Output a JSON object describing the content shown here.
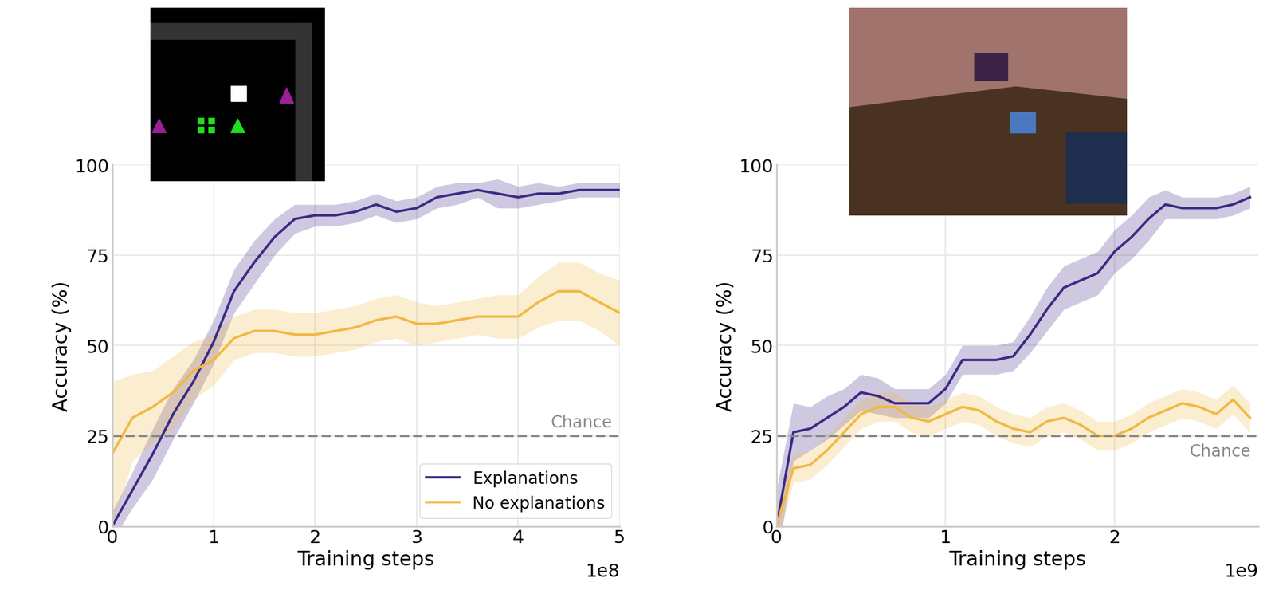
{
  "chart_data": [
    {
      "type": "line",
      "x_label": "Training steps",
      "y_label": "Accuracy (%)",
      "x_axis_note": "1e8",
      "xlim": [
        0,
        5
      ],
      "xticks": [
        0,
        1,
        2,
        3,
        4,
        5
      ],
      "ylim": [
        0,
        100
      ],
      "yticks": [
        0,
        25,
        50,
        75,
        100
      ],
      "grid": true,
      "legend": "lower right",
      "chance": {
        "value": 25,
        "label": "Chance"
      },
      "x": [
        0,
        0.2,
        0.4,
        0.6,
        0.8,
        1.0,
        1.2,
        1.4,
        1.6,
        1.8,
        2.0,
        2.2,
        2.4,
        2.6,
        2.8,
        3.0,
        3.2,
        3.4,
        3.6,
        3.8,
        4.0,
        4.2,
        4.4,
        4.6,
        4.8,
        5.0
      ],
      "series": [
        {
          "name": "Explanations",
          "color": "#3d2a85",
          "values": [
            0,
            10,
            20,
            31,
            40,
            51,
            65,
            73,
            80,
            85,
            86,
            86,
            87,
            89,
            87,
            88,
            91,
            92,
            93,
            92,
            91,
            92,
            92,
            93,
            93,
            93
          ],
          "spread": [
            4,
            5,
            7,
            7,
            6,
            6,
            6,
            6,
            5,
            4,
            3,
            3,
            3,
            3,
            3,
            3,
            3,
            3,
            2,
            4,
            3,
            3,
            2,
            2,
            2,
            2
          ]
        },
        {
          "name": "No explanations",
          "color": "#f2b844",
          "values": [
            20,
            30,
            33,
            37,
            43,
            46,
            52,
            54,
            54,
            53,
            53,
            54,
            55,
            57,
            58,
            56,
            56,
            57,
            58,
            58,
            58,
            62,
            65,
            65,
            62,
            59
          ],
          "spread": [
            20,
            12,
            10,
            10,
            8,
            7,
            6,
            6,
            6,
            6,
            6,
            6,
            6,
            6,
            6,
            6,
            5,
            5,
            5,
            6,
            6,
            7,
            8,
            8,
            8,
            9
          ]
        }
      ]
    },
    {
      "type": "line",
      "x_label": "Training steps",
      "y_label": "Accuracy (%)",
      "x_axis_note": "1e9",
      "xlim": [
        0,
        2.85
      ],
      "xticks": [
        0,
        1,
        2
      ],
      "ylim": [
        0,
        100
      ],
      "yticks": [
        0,
        25,
        50,
        75,
        100
      ],
      "grid": true,
      "chance": {
        "value": 25,
        "label": "Chance"
      },
      "x": [
        0,
        0.1,
        0.2,
        0.3,
        0.4,
        0.5,
        0.6,
        0.7,
        0.8,
        0.9,
        1.0,
        1.1,
        1.2,
        1.3,
        1.4,
        1.5,
        1.6,
        1.7,
        1.8,
        1.9,
        2.0,
        2.1,
        2.2,
        2.3,
        2.4,
        2.5,
        2.6,
        2.7,
        2.8
      ],
      "series": [
        {
          "name": "Explanations",
          "color": "#3d2a85",
          "values": [
            0,
            26,
            27,
            30,
            33,
            37,
            36,
            34,
            34,
            34,
            38,
            46,
            46,
            46,
            47,
            53,
            60,
            66,
            68,
            70,
            76,
            80,
            85,
            89,
            88,
            88,
            88,
            89,
            91
          ],
          "spread": [
            10,
            8,
            6,
            6,
            5,
            5,
            5,
            4,
            4,
            4,
            4,
            4,
            4,
            4,
            4,
            5,
            6,
            6,
            6,
            6,
            6,
            6,
            6,
            4,
            3,
            3,
            3,
            3,
            3
          ]
        },
        {
          "name": "No explanations",
          "color": "#f2b844",
          "values": [
            0,
            16,
            17,
            21,
            26,
            31,
            33,
            33,
            30,
            29,
            31,
            33,
            32,
            29,
            27,
            26,
            29,
            30,
            28,
            25,
            25,
            27,
            30,
            32,
            34,
            33,
            31,
            35,
            30
          ],
          "spread": [
            5,
            4,
            4,
            4,
            4,
            4,
            4,
            4,
            4,
            4,
            4,
            4,
            4,
            4,
            4,
            4,
            4,
            4,
            4,
            4,
            4,
            4,
            4,
            4,
            4,
            4,
            4,
            4,
            4
          ]
        }
      ]
    }
  ]
}
